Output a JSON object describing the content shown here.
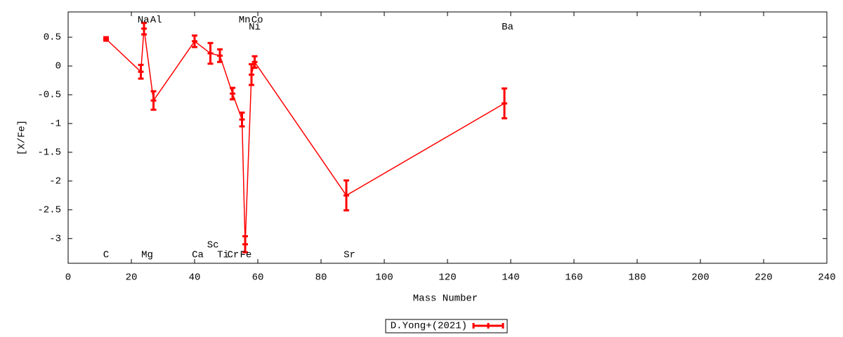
{
  "chart_data": {
    "type": "errorline",
    "xlabel": "Mass Number",
    "ylabel": "[X/Fe]",
    "xlim": [
      0,
      240
    ],
    "xticks": [
      0,
      20,
      40,
      60,
      80,
      100,
      120,
      140,
      160,
      180,
      200,
      220,
      240
    ],
    "ylim": [
      -3.43,
      0.94
    ],
    "yticks": [
      0.5,
      0,
      -0.5,
      -1,
      -1.5,
      -2,
      -2.5,
      -3
    ],
    "grid": false,
    "legend": "bottom",
    "series": [
      {
        "name": "D.Yong+(2021)",
        "color": "#ff0000",
        "x": [
          12,
          23,
          24,
          27,
          40,
          45,
          48,
          52,
          55,
          56,
          58,
          59,
          88,
          138
        ],
        "values": [
          0.47,
          -0.1,
          0.65,
          -0.6,
          0.43,
          0.22,
          0.18,
          -0.48,
          -0.93,
          -3.1,
          -0.15,
          0.07,
          -2.25,
          -0.65
        ],
        "errors": [
          0.03,
          0.12,
          0.1,
          0.16,
          0.1,
          0.18,
          0.11,
          0.1,
          0.12,
          0.14,
          0.18,
          0.1,
          0.26,
          0.26
        ]
      }
    ],
    "annotations": [
      {
        "text": "C",
        "x": 12,
        "y": -3.28
      },
      {
        "text": "Na",
        "x": 23.8,
        "y": 0.8
      },
      {
        "text": "Al",
        "x": 27.8,
        "y": 0.8
      },
      {
        "text": "Mg",
        "x": 25,
        "y": -3.28
      },
      {
        "text": "Ca",
        "x": 41,
        "y": -3.28
      },
      {
        "text": "Sc",
        "x": 45.8,
        "y": -3.11
      },
      {
        "text": "Ti",
        "x": 49,
        "y": -3.28
      },
      {
        "text": "Cr",
        "x": 52.2,
        "y": -3.28
      },
      {
        "text": "Fe",
        "x": 56.2,
        "y": -3.28
      },
      {
        "text": "Mn",
        "x": 55.8,
        "y": 0.8
      },
      {
        "text": "Co",
        "x": 59.8,
        "y": 0.8
      },
      {
        "text": "Ni",
        "x": 59,
        "y": 0.68
      },
      {
        "text": "Sr",
        "x": 89,
        "y": -3.28
      },
      {
        "text": "Ba",
        "x": 139,
        "y": 0.68
      }
    ]
  }
}
